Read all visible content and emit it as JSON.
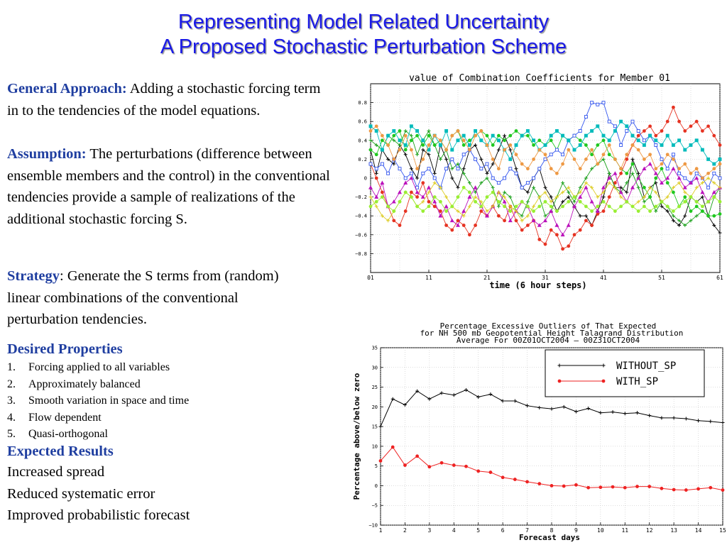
{
  "slide": {
    "title_line1": "Representing Model Related Uncertainty",
    "title_line2": "A Proposed Stochastic Perturbation Scheme"
  },
  "content": {
    "general_label": "General Approach:",
    "general_text": " Adding a stochastic forcing term in to the tendencies of the model equations.",
    "assumption_label": "Assumption:",
    "assumption_text": " The perturbations (difference between ensemble members and the control) in the conventional tendencies provide a sample of realizations of the additional stochastic forcing S.",
    "strategy_label": "Strategy",
    "strategy_text": ": Generate the S terms from (random) linear combinations of the conventional perturbation tendencies.",
    "desired_heading": "Desired Properties",
    "desired_items": [
      {
        "num": "1.",
        "text": "Forcing applied to all variables"
      },
      {
        "num": "2.",
        "text": "Approximately balanced"
      },
      {
        "num": "3.",
        "text": "Smooth variation in space and time"
      },
      {
        "num": "4.",
        "text": "Flow dependent"
      },
      {
        "num": "5.",
        "text": "Quasi-orthogonal"
      }
    ],
    "expected_heading": "Expected Results",
    "expected_items": [
      "Increased spread",
      "Reduced systematic error",
      "Improved probabilistic forecast"
    ]
  },
  "chart_data": [
    {
      "type": "line",
      "title": "value of Combination Coefficients for Member 01",
      "xlabel": "time (6 hour steps)",
      "ylabel": "",
      "xticks": [
        "01",
        "11",
        "21",
        "31",
        "41",
        "51",
        "61"
      ],
      "xlim": [
        1,
        61
      ],
      "yticks": [
        0.8,
        0.6,
        0.4,
        0.2,
        0,
        -0.2,
        -0.4,
        -0.6,
        -0.8
      ],
      "ytick_labels": [
        "0.8",
        "0.6",
        "0.4",
        "0.2",
        "0",
        "−0.2",
        "−0.4",
        "−0.6",
        "−0.8"
      ],
      "ylim": [
        -1.0,
        1.0
      ],
      "grid": true,
      "legend": "none",
      "series": [
        {
          "color": "#000000",
          "marker": "plus",
          "values": [
            0.3,
            0.05,
            0.3,
            0.2,
            0.15,
            0.35,
            0.25,
            0.1,
            0.0,
            0.3,
            0.25,
            0.05,
            0.35,
            0.2,
            0.0,
            -0.1,
            0.1,
            0.3,
            0.35,
            0.2,
            0.05,
            0.15,
            0.3,
            0.45,
            0.3,
            0.1,
            -0.1,
            -0.15,
            0.0,
            0.1,
            -0.1,
            -0.2,
            -0.35,
            -0.25,
            -0.2,
            -0.3,
            -0.4,
            -0.4,
            -0.5,
            -0.35,
            -0.2,
            0.05,
            -0.1,
            -0.1,
            -0.15,
            0.2,
            0.05,
            -0.2,
            -0.1,
            -0.05,
            -0.3,
            -0.35,
            -0.45,
            -0.5,
            -0.4,
            -0.2,
            -0.25,
            -0.2,
            -0.4,
            -0.5,
            -0.58
          ]
        },
        {
          "color": "#e63322",
          "marker": "circle",
          "values": [
            0.15,
            0.0,
            -0.15,
            -0.3,
            -0.45,
            -0.5,
            -0.35,
            -0.15,
            -0.2,
            -0.05,
            -0.25,
            -0.3,
            -0.35,
            -0.5,
            -0.55,
            -0.45,
            -0.5,
            -0.6,
            -0.5,
            -0.35,
            -0.4,
            -0.3,
            -0.4,
            -0.45,
            -0.3,
            -0.45,
            -0.55,
            -0.5,
            -0.45,
            -0.65,
            -0.7,
            -0.55,
            -0.6,
            -0.75,
            -0.72,
            -0.6,
            -0.55,
            -0.45,
            -0.5,
            -0.38,
            -0.35,
            -0.2,
            -0.05,
            0.05,
            0.2,
            0.35,
            0.45,
            0.5,
            0.55,
            0.45,
            0.5,
            0.6,
            0.75,
            0.6,
            0.5,
            0.55,
            0.6,
            0.5,
            0.55,
            0.45,
            0.35
          ]
        },
        {
          "color": "#1aa01a",
          "marker": "plus",
          "values": [
            0.4,
            0.35,
            0.3,
            0.45,
            0.4,
            0.35,
            0.5,
            0.45,
            0.25,
            0.4,
            0.5,
            0.35,
            0.2,
            0.3,
            0.1,
            0.15,
            0.05,
            -0.05,
            -0.15,
            -0.05,
            0.0,
            -0.1,
            -0.3,
            -0.15,
            -0.2,
            -0.35,
            -0.4,
            -0.25,
            -0.1,
            -0.2,
            -0.4,
            -0.35,
            -0.2,
            -0.05,
            -0.15,
            -0.25,
            -0.1,
            0.0,
            0.1,
            0.15,
            0.2,
            0.05,
            -0.1,
            -0.15,
            -0.05,
            0.05,
            -0.1,
            -0.25,
            -0.2,
            -0.35,
            -0.25,
            -0.3,
            -0.4,
            -0.45,
            -0.5,
            -0.45,
            -0.4,
            -0.35,
            -0.4,
            -0.2,
            -0.1
          ]
        },
        {
          "color": "#20c820",
          "marker": "circle",
          "values": [
            0.3,
            0.25,
            0.4,
            0.35,
            0.45,
            0.5,
            0.3,
            0.4,
            0.45,
            0.35,
            0.45,
            0.35,
            0.4,
            0.3,
            0.45,
            0.5,
            0.35,
            0.4,
            0.45,
            0.5,
            0.45,
            0.35,
            0.45,
            0.4,
            0.45,
            0.5,
            0.45,
            0.45,
            0.35,
            0.4,
            0.35,
            0.4,
            0.3,
            0.45,
            0.4,
            0.45,
            0.4,
            0.35,
            0.25,
            0.35,
            0.4,
            0.25,
            0.2,
            0.1,
            0.05,
            0.15,
            0.0,
            -0.1,
            -0.2,
            0.0,
            0.1,
            -0.05,
            -0.15,
            -0.3,
            -0.2,
            -0.35,
            -0.3,
            -0.35,
            -0.4,
            -0.4,
            -0.38
          ]
        },
        {
          "color": "#3355ee",
          "marker": "square",
          "values": [
            0.15,
            0.1,
            0.15,
            0.05,
            0.2,
            0.1,
            0.0,
            0.05,
            -0.1,
            0.05,
            0.1,
            0.0,
            -0.1,
            0.1,
            0.2,
            0.1,
            0.25,
            0.3,
            0.2,
            0.1,
            0.15,
            0.0,
            -0.05,
            0.0,
            0.1,
            0.05,
            -0.1,
            -0.05,
            0.0,
            0.1,
            0.2,
            0.25,
            0.3,
            0.25,
            0.4,
            0.45,
            0.5,
            0.65,
            0.8,
            0.78,
            0.8,
            0.6,
            0.55,
            0.35,
            0.5,
            0.6,
            0.5,
            0.4,
            0.45,
            0.35,
            0.2,
            0.1,
            0.25,
            0.05,
            0.0,
            -0.05,
            0.05,
            0.0,
            -0.1,
            0.05,
            0.0
          ]
        },
        {
          "color": "#00bbbb",
          "marker": "square",
          "values": [
            0.55,
            0.5,
            0.3,
            0.45,
            0.5,
            0.4,
            0.35,
            0.55,
            0.5,
            0.4,
            0.3,
            0.45,
            0.35,
            0.5,
            0.3,
            0.4,
            0.45,
            0.35,
            0.5,
            0.4,
            0.35,
            0.45,
            0.4,
            0.3,
            0.2,
            0.35,
            0.45,
            0.5,
            0.4,
            0.3,
            0.35,
            0.45,
            0.5,
            0.45,
            0.4,
            0.3,
            0.35,
            0.45,
            0.5,
            0.55,
            0.45,
            0.4,
            0.5,
            0.6,
            0.55,
            0.45,
            0.4,
            0.35,
            0.45,
            0.4,
            0.35,
            0.45,
            0.35,
            0.4,
            0.3,
            0.35,
            0.4,
            0.3,
            0.2,
            0.15,
            0.2
          ]
        },
        {
          "color": "#bb11bb",
          "marker": "triangle",
          "values": [
            -0.1,
            -0.2,
            -0.05,
            -0.3,
            -0.25,
            -0.15,
            -0.05,
            0.0,
            -0.15,
            -0.2,
            -0.1,
            -0.25,
            -0.4,
            -0.3,
            -0.45,
            -0.5,
            -0.35,
            -0.2,
            -0.1,
            -0.3,
            -0.4,
            -0.3,
            -0.15,
            -0.25,
            -0.45,
            -0.35,
            -0.25,
            -0.3,
            -0.45,
            -0.5,
            -0.45,
            -0.35,
            -0.5,
            -0.6,
            -0.5,
            -0.3,
            -0.2,
            -0.1,
            -0.25,
            -0.35,
            -0.1,
            0.0,
            0.05,
            -0.15,
            -0.25,
            -0.1,
            0.0,
            0.1,
            0.15,
            0.05,
            -0.05,
            0.0,
            0.1,
            0.0,
            -0.1,
            -0.05,
            0.0,
            -0.15,
            -0.25,
            -0.15,
            -0.1
          ]
        },
        {
          "color": "#ee9944",
          "marker": "circle",
          "values": [
            0.5,
            0.55,
            0.45,
            0.35,
            0.2,
            0.3,
            0.45,
            0.3,
            0.1,
            0.2,
            0.35,
            0.45,
            0.4,
            0.3,
            0.45,
            0.5,
            0.4,
            0.3,
            0.45,
            0.5,
            0.35,
            0.2,
            0.1,
            0.3,
            0.35,
            0.25,
            0.15,
            0.1,
            0.2,
            0.3,
            0.25,
            0.1,
            0.05,
            0.15,
            0.3,
            0.2,
            0.1,
            0.2,
            0.3,
            0.15,
            0.25,
            0.35,
            0.2,
            0.1,
            0.25,
            0.35,
            0.3,
            0.2,
            0.25,
            0.1,
            0.15,
            0.25,
            0.2,
            0.1,
            0.15,
            0.05,
            0.1,
            0.0,
            0.05,
            0.1,
            0.15
          ]
        },
        {
          "color": "#ddcc22",
          "marker": "plus",
          "values": [
            -0.2,
            -0.3,
            -0.4,
            -0.45,
            -0.35,
            -0.25,
            -0.15,
            -0.2,
            -0.3,
            -0.25,
            -0.15,
            -0.05,
            -0.1,
            -0.2,
            -0.3,
            -0.35,
            -0.4,
            -0.3,
            -0.2,
            -0.25,
            -0.35,
            -0.3,
            -0.15,
            -0.2,
            -0.3,
            -0.35,
            -0.45,
            -0.4,
            -0.3,
            -0.2,
            -0.15,
            -0.25,
            -0.2,
            -0.15,
            -0.1,
            -0.2,
            -0.15,
            -0.05,
            -0.1,
            -0.2,
            -0.15,
            -0.05,
            -0.1,
            -0.2,
            -0.25,
            -0.3,
            -0.25,
            -0.2,
            -0.1,
            -0.15,
            -0.25,
            -0.2,
            -0.1,
            -0.05,
            -0.15,
            -0.2,
            -0.1,
            -0.05,
            0.0,
            -0.05,
            -0.1
          ]
        },
        {
          "color": "#99ee33",
          "marker": "circle",
          "values": [
            -0.3,
            -0.25,
            -0.2,
            -0.3,
            -0.35,
            -0.25,
            -0.15,
            -0.2,
            -0.3,
            -0.35,
            -0.3,
            -0.2,
            -0.25,
            -0.35,
            -0.3,
            -0.2,
            -0.1,
            -0.15,
            -0.25,
            -0.3,
            -0.2,
            -0.15,
            -0.25,
            -0.3,
            -0.35,
            -0.3,
            -0.25,
            -0.3,
            -0.35,
            -0.3,
            -0.25,
            -0.3,
            -0.35,
            -0.3,
            -0.25,
            -0.2,
            -0.25,
            -0.3,
            -0.35,
            -0.3,
            -0.25,
            -0.3,
            -0.35,
            -0.3,
            -0.25,
            -0.3,
            -0.35,
            -0.3,
            -0.35,
            -0.3,
            -0.25,
            -0.3,
            -0.35,
            -0.3,
            -0.25,
            -0.2,
            -0.25,
            -0.3,
            -0.25,
            -0.2,
            -0.25
          ]
        }
      ]
    },
    {
      "type": "line",
      "title": "Percentage Excessive Outliers of That Expected",
      "subtitle": "for NH 500 mb Geopotential Height Talagrand Distribution",
      "subtitle2": "Average For 00Z01OCT2004 — 00Z31OCT2004",
      "xlabel": "Forecast days",
      "ylabel": "Percentage above/below zero",
      "xlim": [
        1,
        15
      ],
      "ylim": [
        -10,
        35
      ],
      "xticks": [
        1,
        2,
        3,
        4,
        5,
        6,
        7,
        8,
        9,
        10,
        11,
        12,
        13,
        14,
        15
      ],
      "yticks": [
        35,
        30,
        25,
        20,
        15,
        10,
        5,
        0,
        -5,
        -10
      ],
      "ytick_labels": [
        "35",
        "30",
        "25",
        "20",
        "15",
        "10",
        "5",
        "0",
        "−5",
        "−10"
      ],
      "grid": true,
      "legend": "top-right",
      "x": [
        1,
        1.5,
        2,
        2.5,
        3,
        3.5,
        4,
        4.5,
        5,
        5.5,
        6,
        6.5,
        7,
        7.5,
        8,
        8.5,
        9,
        9.5,
        10,
        10.5,
        11,
        11.5,
        12,
        12.5,
        13,
        13.5,
        14,
        14.5,
        15
      ],
      "series": [
        {
          "name": "WITHOUT_SP",
          "color": "#000000",
          "marker": "plus",
          "values": [
            15,
            22,
            20.5,
            24,
            22,
            23.5,
            23,
            24.3,
            22.5,
            23.2,
            21.5,
            21.5,
            20.3,
            19.8,
            19.5,
            20,
            18.8,
            19.6,
            18.5,
            18.7,
            18.3,
            18.5,
            17.8,
            17.2,
            17.2,
            17,
            16.5,
            16.3,
            16
          ]
        },
        {
          "name": "WITH_SP",
          "color": "#ee2222",
          "marker": "circle",
          "values": [
            6.3,
            9.8,
            5.2,
            7.5,
            4.8,
            5.8,
            5.2,
            4.9,
            3.7,
            3.4,
            2.1,
            1.6,
            1.0,
            0.5,
            0.0,
            -0.1,
            0.2,
            -0.5,
            -0.4,
            -0.3,
            -0.5,
            -0.2,
            -0.2,
            -0.7,
            -1.0,
            -1.1,
            -0.8,
            -0.5,
            -1.1
          ]
        }
      ]
    }
  ]
}
